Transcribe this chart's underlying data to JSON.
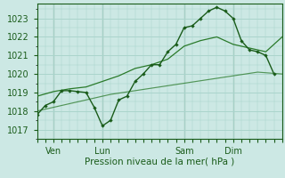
{
  "bg_color": "#cce8e4",
  "grid_color": "#aad4cc",
  "line_color_dark": "#1a5c1a",
  "line_color_mid": "#2a7a2a",
  "line_color_light": "#2a7a2a",
  "ylim": [
    1016.5,
    1023.8
  ],
  "yticks": [
    1017,
    1018,
    1019,
    1020,
    1021,
    1022,
    1023
  ],
  "xlabel": "Pression niveau de la mer( hPa )",
  "day_labels": [
    "Ven",
    "Lun",
    "Sam",
    "Dim"
  ],
  "day_positions": [
    8,
    32,
    72,
    96
  ],
  "total_hours": 120,
  "series1_x": [
    0,
    4,
    8,
    12,
    16,
    20,
    24,
    28,
    32,
    36,
    40,
    44,
    48,
    52,
    56,
    60,
    64,
    68,
    72,
    76,
    80,
    84,
    88,
    92,
    96,
    100,
    104,
    108,
    112,
    116
  ],
  "series1_y": [
    1017.8,
    1018.3,
    1018.5,
    1019.1,
    1019.1,
    1019.05,
    1019.0,
    1018.2,
    1017.2,
    1017.5,
    1018.6,
    1018.8,
    1019.6,
    1020.0,
    1020.5,
    1020.5,
    1021.2,
    1021.6,
    1022.5,
    1022.6,
    1023.0,
    1023.4,
    1023.6,
    1023.4,
    1023.0,
    1021.8,
    1021.3,
    1021.2,
    1021.0,
    1020.0
  ],
  "series2_x": [
    0,
    8,
    16,
    24,
    32,
    40,
    48,
    56,
    64,
    72,
    80,
    88,
    96,
    104,
    112,
    120
  ],
  "series2_y": [
    1018.8,
    1019.05,
    1019.2,
    1019.3,
    1019.6,
    1019.9,
    1020.3,
    1020.5,
    1020.8,
    1021.5,
    1021.8,
    1022.0,
    1021.6,
    1021.4,
    1021.2,
    1022.0
  ],
  "series3_x": [
    0,
    12,
    24,
    36,
    48,
    60,
    72,
    84,
    96,
    108,
    120
  ],
  "series3_y": [
    1018.0,
    1018.3,
    1018.6,
    1018.9,
    1019.1,
    1019.3,
    1019.5,
    1019.7,
    1019.9,
    1020.1,
    1020.0
  ],
  "vline_positions": [
    8,
    32,
    72,
    96
  ],
  "vline_color": "#336633"
}
